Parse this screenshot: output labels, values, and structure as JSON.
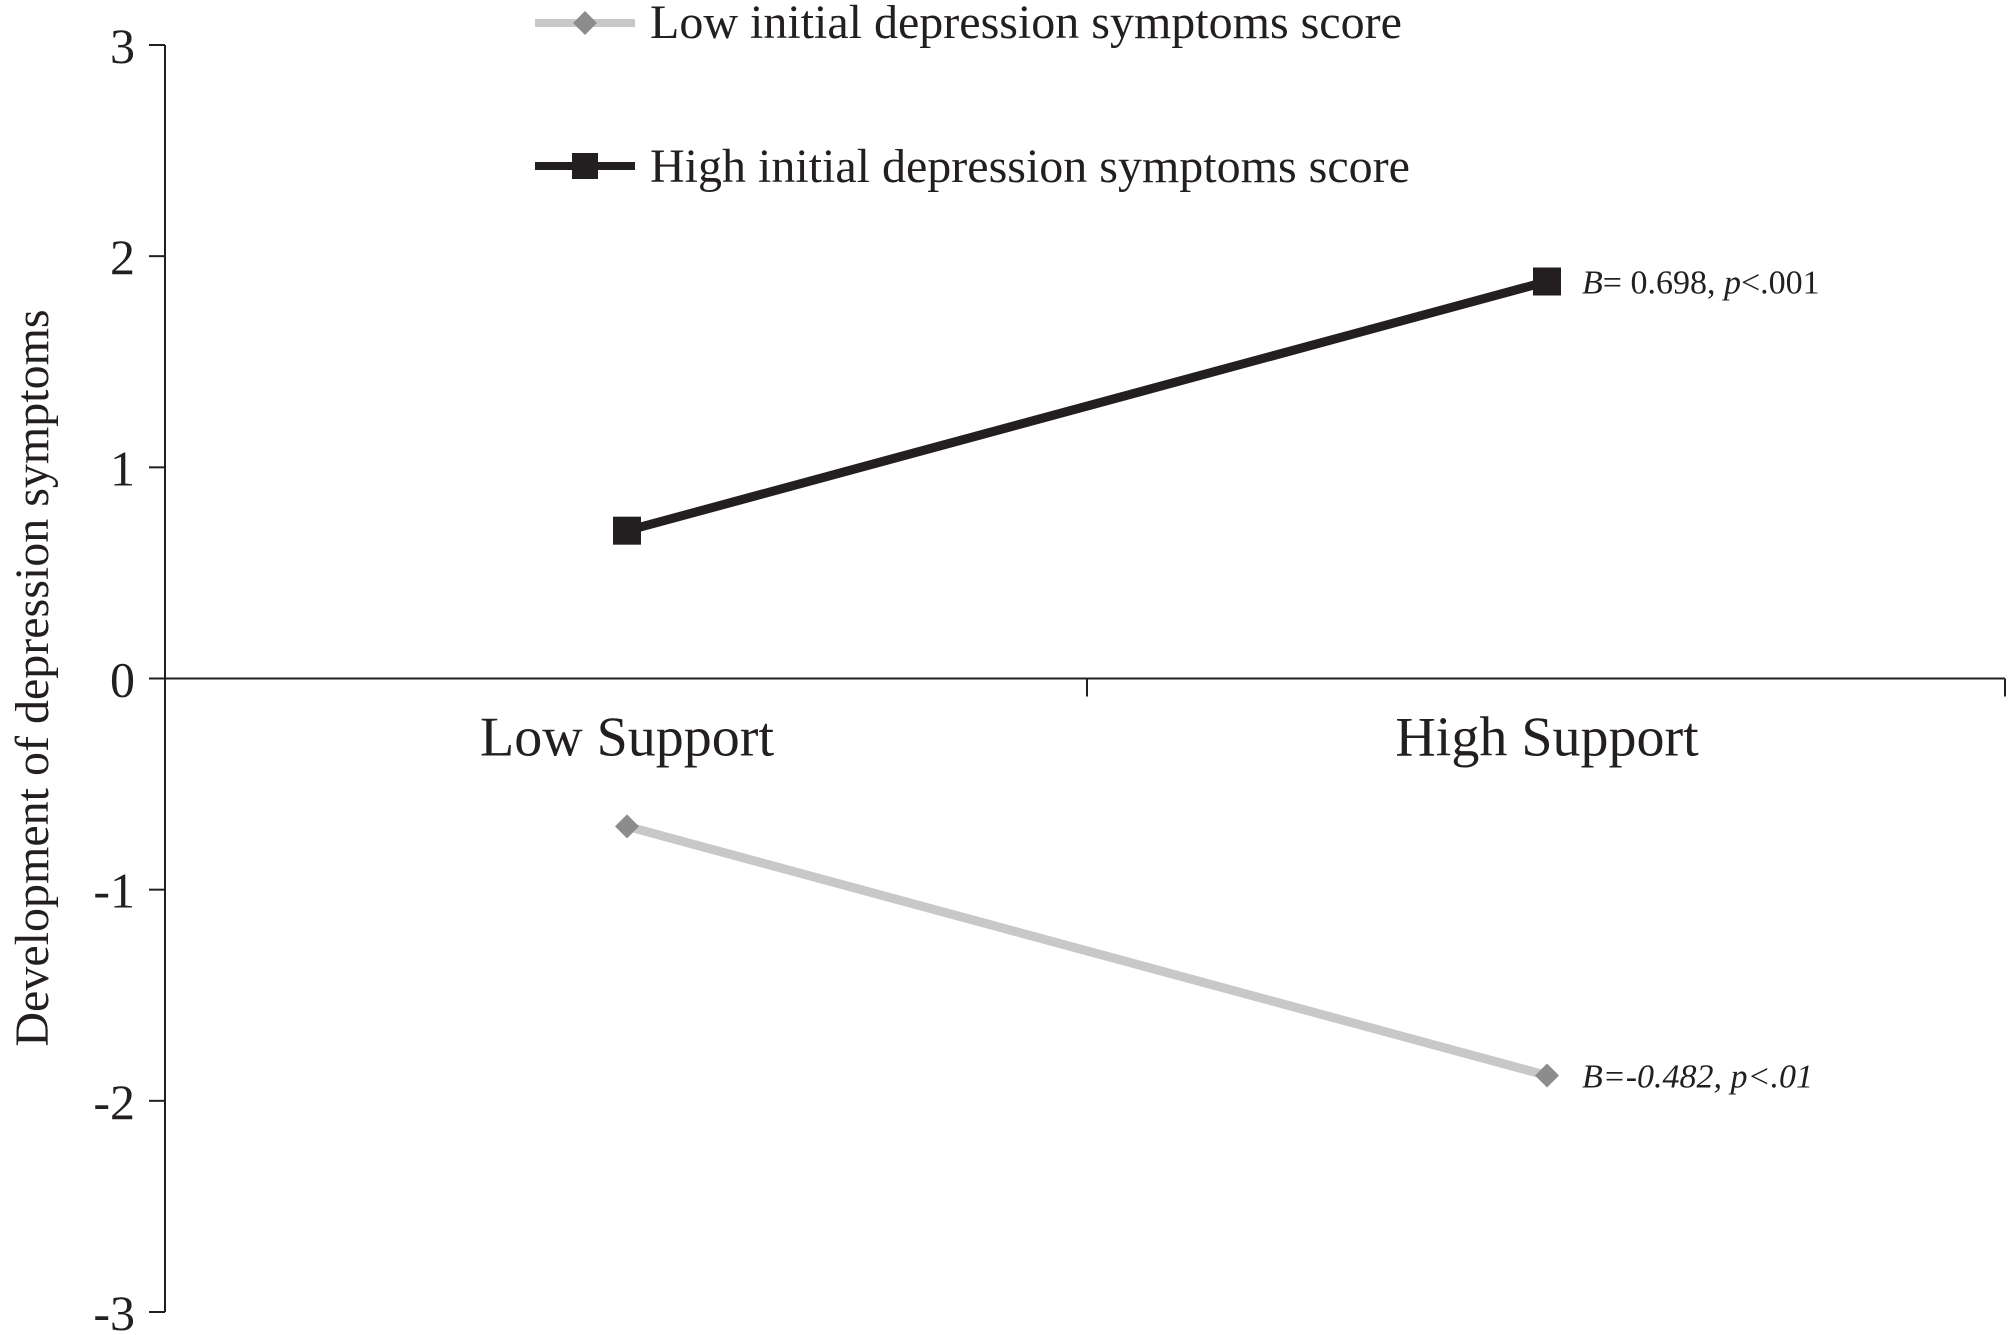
{
  "chart_data": {
    "type": "line",
    "title": "",
    "xlabel": "",
    "ylabel": "Development of depression symptoms",
    "categories": [
      "Low Support",
      "High Support"
    ],
    "ylim": [
      -3,
      3
    ],
    "yticks": [
      3,
      2,
      1,
      0,
      -1,
      -2,
      -3
    ],
    "ytick_labels": [
      "3",
      "2",
      "1",
      "0",
      "-1",
      "-2",
      "-3"
    ],
    "grid": false,
    "legend_position": "top",
    "series": [
      {
        "name": "Low initial depression symptoms score",
        "values": [
          -0.7,
          -1.88
        ],
        "color": "#c8c8c8",
        "marker_color": "#8c8c8c",
        "marker": "diamond",
        "annotation": {
          "B_label": "B",
          "rest": "=-0.482, ",
          "p_label": "p",
          "p_rest": "<.01"
        }
      },
      {
        "name": "High initial depression symptoms score",
        "values": [
          0.7,
          1.88
        ],
        "color": "#231f20",
        "marker_color": "#231f20",
        "marker": "square",
        "annotation": {
          "B_label": "B",
          "rest": "= 0.698, ",
          "p_label": "p",
          "p_rest": "<.001"
        }
      }
    ]
  }
}
